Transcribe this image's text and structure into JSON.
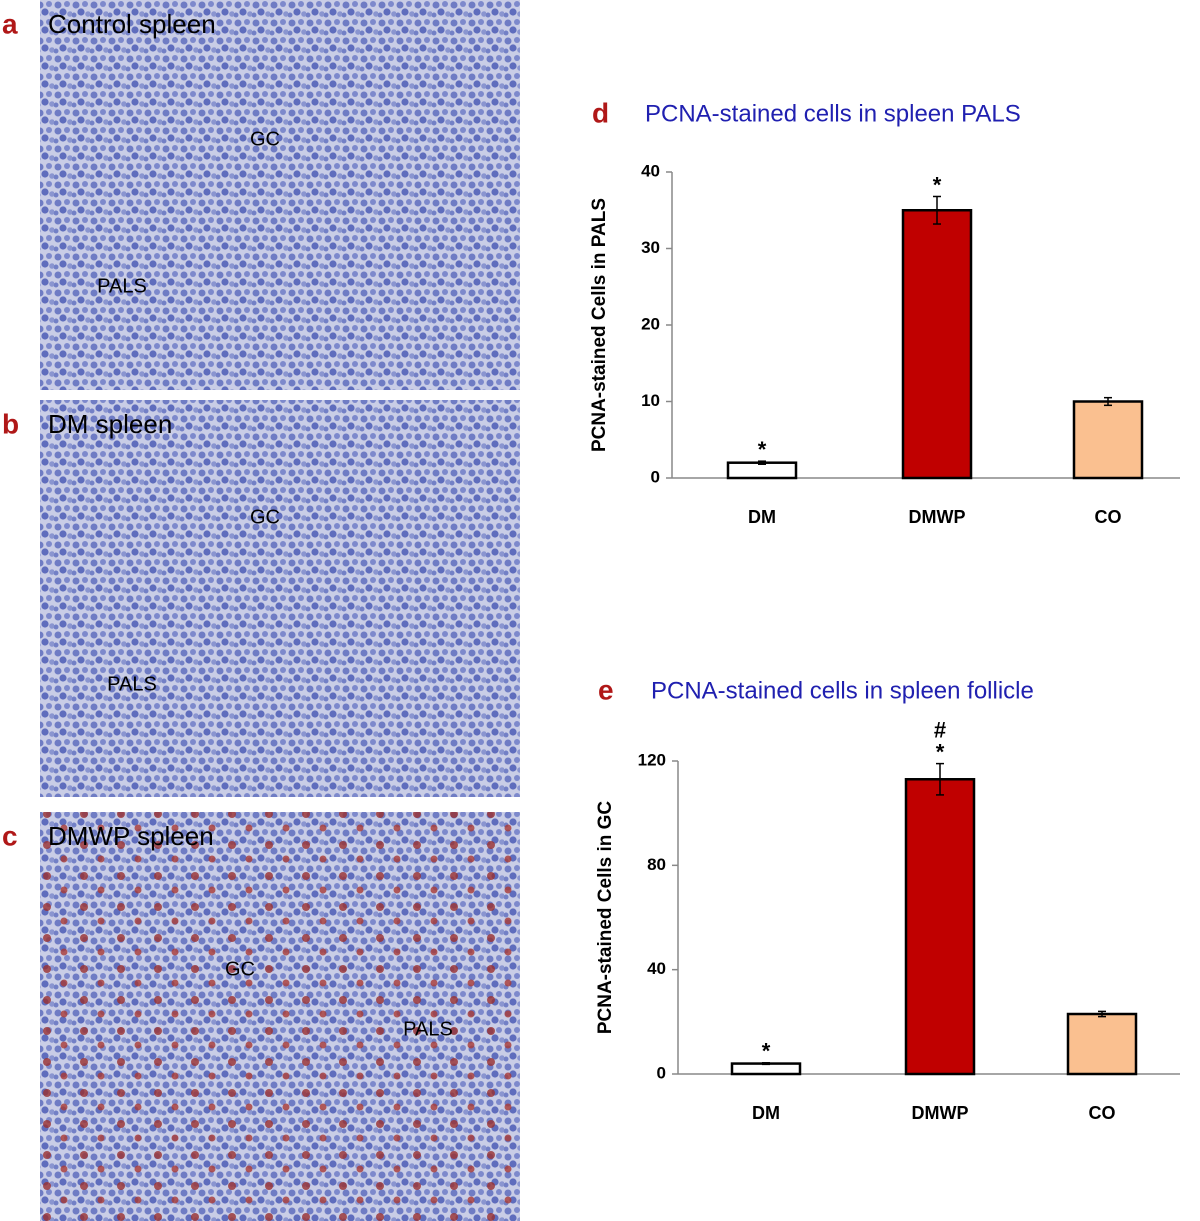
{
  "panels": [
    {
      "letter": "a",
      "title": "Control spleen",
      "labels": [
        "GC",
        "PALS"
      ]
    },
    {
      "letter": "b",
      "title": "DM spleen",
      "labels": [
        "GC",
        "PALS"
      ]
    },
    {
      "letter": "c",
      "title": "DMWP spleen",
      "labels": [
        "GC",
        "PALS"
      ]
    }
  ],
  "chart_data": [
    {
      "type": "bar",
      "letter": "d",
      "title": "PCNA-stained cells in spleen PALS",
      "ylabel": "PCNA-stained Cells in PALS",
      "categories": [
        "DM",
        "DMWP",
        "CO"
      ],
      "values": [
        2,
        35,
        10
      ],
      "errors": [
        0.2,
        1.8,
        0.5
      ],
      "colors": [
        "#ffffff",
        "#c00000",
        "#fac090"
      ],
      "annotations": [
        [
          "*"
        ],
        [
          "*"
        ],
        []
      ],
      "ylim": [
        0,
        40
      ],
      "yticks": [
        0,
        10,
        20,
        30,
        40
      ]
    },
    {
      "type": "bar",
      "letter": "e",
      "title": "PCNA-stained cells in spleen follicle",
      "ylabel": "PCNA-stained Cells in GC",
      "categories": [
        "DM",
        "DMWP",
        "CO"
      ],
      "values": [
        4,
        113,
        23
      ],
      "errors": [
        0.3,
        6,
        1
      ],
      "colors": [
        "#ffffff",
        "#c00000",
        "#fac090"
      ],
      "annotations": [
        [
          "*"
        ],
        [
          "#",
          "*"
        ],
        []
      ],
      "ylim": [
        0,
        120
      ],
      "yticks": [
        0,
        40,
        80,
        120
      ]
    }
  ]
}
